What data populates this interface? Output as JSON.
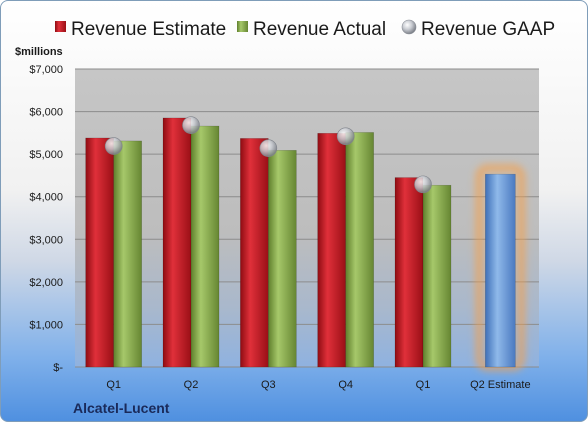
{
  "chart_data": {
    "type": "bar",
    "title": "Alcatel-Lucent",
    "ylabel": "$millions",
    "xlabel": "",
    "ylim": [
      0,
      7000
    ],
    "yticks": [
      "$-",
      "$1,000",
      "$2,000",
      "$3,000",
      "$4,000",
      "$5,000",
      "$6,000",
      "$7,000"
    ],
    "categories": [
      "Q1",
      "Q2",
      "Q3",
      "Q4",
      "Q1",
      "Q2 Estimate"
    ],
    "series": [
      {
        "name": "Revenue Estimate",
        "kind": "bar",
        "color": "#c0141c",
        "values": [
          5380,
          5850,
          5370,
          5490,
          4450,
          null
        ]
      },
      {
        "name": "Revenue Actual",
        "kind": "bar",
        "color": "#8ab04a",
        "values": [
          5310,
          5660,
          5090,
          5510,
          4270,
          null
        ]
      },
      {
        "name": "Revenue GAAP",
        "kind": "marker",
        "color": "#b8bcc4",
        "values": [
          5190,
          5680,
          5140,
          5420,
          4290,
          null
        ]
      }
    ],
    "estimate": {
      "category": "Q2 Estimate",
      "value": 4530,
      "color": "#6f9fd8",
      "highlight": "#f5a04a"
    },
    "grid": true,
    "legend_position": "top"
  }
}
